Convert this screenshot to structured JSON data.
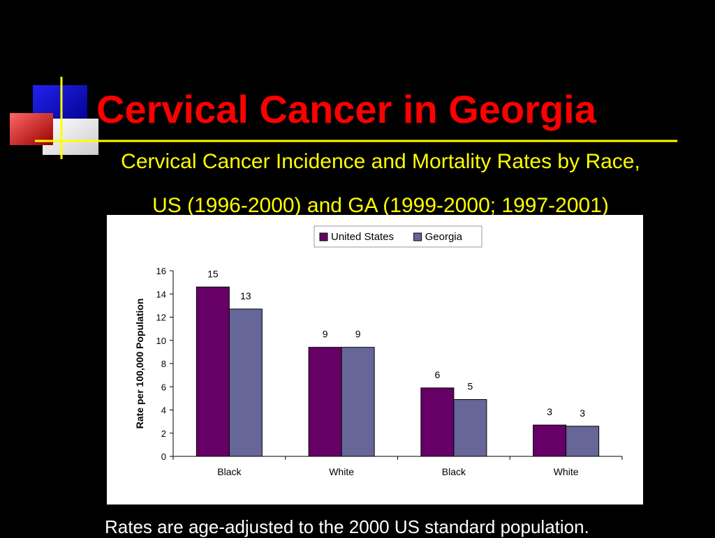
{
  "slide": {
    "title": "Cervical Cancer in Georgia",
    "subtitle_line1": "Cervical Cancer Incidence and Mortality Rates by Race,",
    "subtitle_line2": "US (1996-2000) and GA (1999-2000; 1997-2001)",
    "footnote": "Rates are age-adjusted to the 2000 US standard population.",
    "colors": {
      "background": "#000000",
      "title": "#ff0000",
      "subtitle": "#ffff00",
      "footnote": "#ffffff"
    }
  },
  "chart_data": {
    "type": "bar",
    "categories": [
      "Black",
      "White",
      "Black",
      "White"
    ],
    "series": [
      {
        "name": "United States",
        "color": "#660066",
        "values": [
          14.6,
          9.4,
          5.9,
          2.7
        ],
        "labels": [
          "15",
          "9",
          "6",
          "3"
        ]
      },
      {
        "name": "Georgia",
        "color": "#666699",
        "values": [
          12.7,
          9.4,
          4.9,
          2.6
        ],
        "labels": [
          "13",
          "9",
          "5",
          "3"
        ]
      }
    ],
    "ylabel": "Rate per 100,000 Population",
    "ylim": [
      0,
      16
    ],
    "yticks": [
      0,
      2,
      4,
      6,
      8,
      10,
      12,
      14,
      16
    ],
    "legend": "top-center",
    "grid": false
  }
}
